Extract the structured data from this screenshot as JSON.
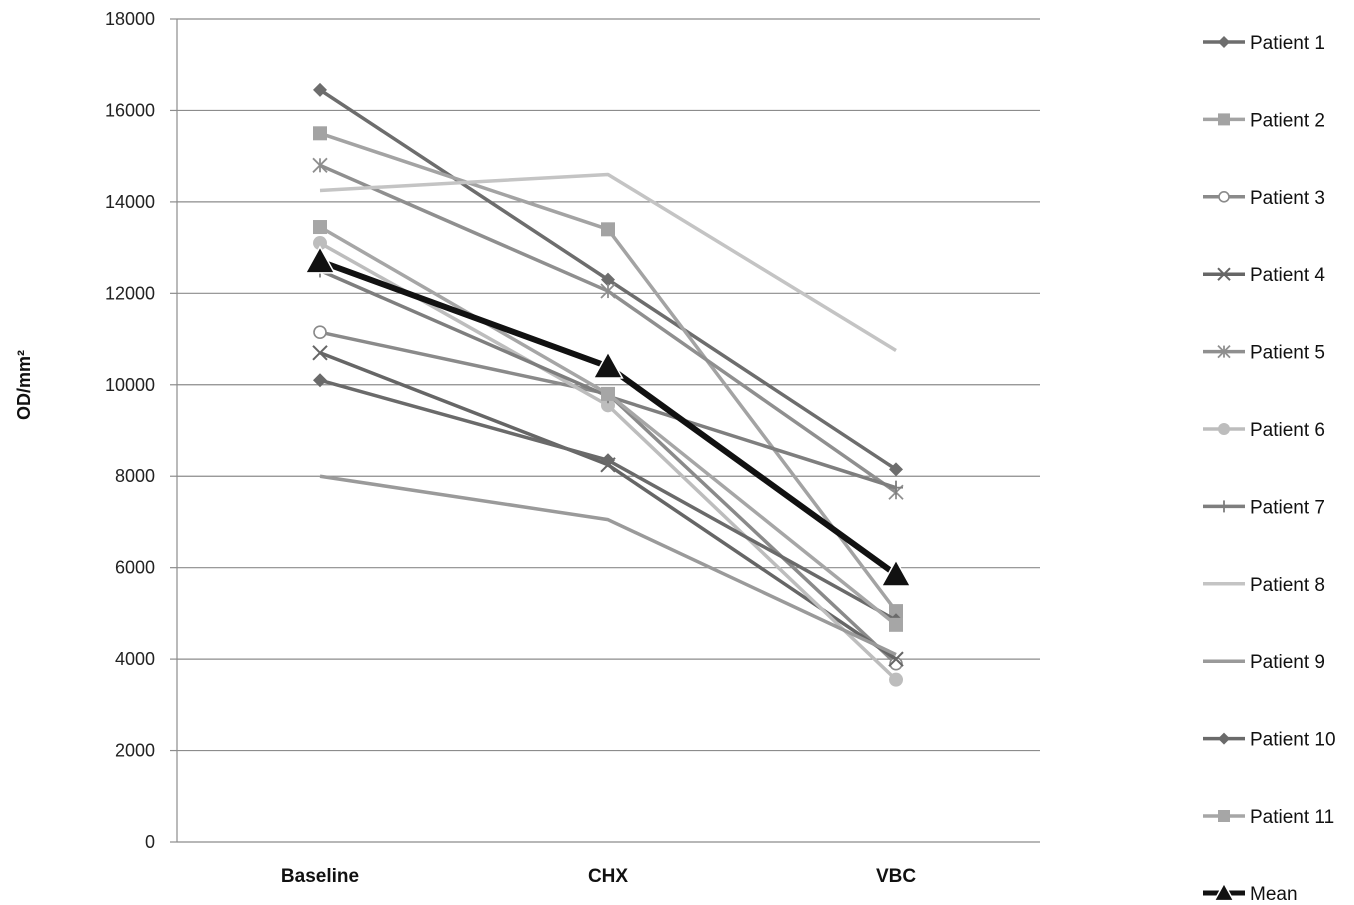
{
  "chart_data": {
    "type": "line",
    "categories": [
      "Baseline",
      "CHX",
      "VBC"
    ],
    "ylabel": "OD/mm²",
    "xlabel": "",
    "ylim": [
      0,
      18000
    ],
    "yticks": [
      0,
      2000,
      4000,
      6000,
      8000,
      10000,
      12000,
      14000,
      16000,
      18000
    ],
    "grid": true,
    "legend_position": "right",
    "series": [
      {
        "name": "Patient 1",
        "values": [
          16450,
          12300,
          8150
        ],
        "marker": "diamond",
        "color": "#6d6d6d"
      },
      {
        "name": "Patient 2",
        "values": [
          15500,
          13400,
          5050
        ],
        "marker": "square",
        "color": "#a3a3a3"
      },
      {
        "name": "Patient 3",
        "values": [
          11150,
          9800,
          3900
        ],
        "marker": "circle-open",
        "color": "#8a8a8a"
      },
      {
        "name": "Patient 4",
        "values": [
          10700,
          8250,
          4000
        ],
        "marker": "x",
        "color": "#666666"
      },
      {
        "name": "Patient 5",
        "values": [
          14800,
          12050,
          7650
        ],
        "marker": "star",
        "color": "#8f8f8f"
      },
      {
        "name": "Patient 6",
        "values": [
          13100,
          9550,
          3550
        ],
        "marker": "circle",
        "color": "#bdbdbd"
      },
      {
        "name": "Patient 7",
        "values": [
          12500,
          9750,
          7750
        ],
        "marker": "plus",
        "color": "#7e7e7e"
      },
      {
        "name": "Patient 8",
        "values": [
          14250,
          14600,
          10750
        ],
        "marker": "none",
        "color": "#c4c4c4"
      },
      {
        "name": "Patient 9",
        "values": [
          8000,
          7050,
          4100
        ],
        "marker": "none",
        "color": "#9a9a9a"
      },
      {
        "name": "Patient 10",
        "values": [
          10100,
          8350,
          4850
        ],
        "marker": "diamond",
        "color": "#6a6a6a"
      },
      {
        "name": "Patient 11",
        "values": [
          13450,
          9800,
          4750
        ],
        "marker": "square",
        "color": "#a6a6a6"
      },
      {
        "name": "Mean",
        "values": [
          12700,
          10400,
          5850
        ],
        "marker": "triangle",
        "color": "#111111"
      }
    ]
  }
}
